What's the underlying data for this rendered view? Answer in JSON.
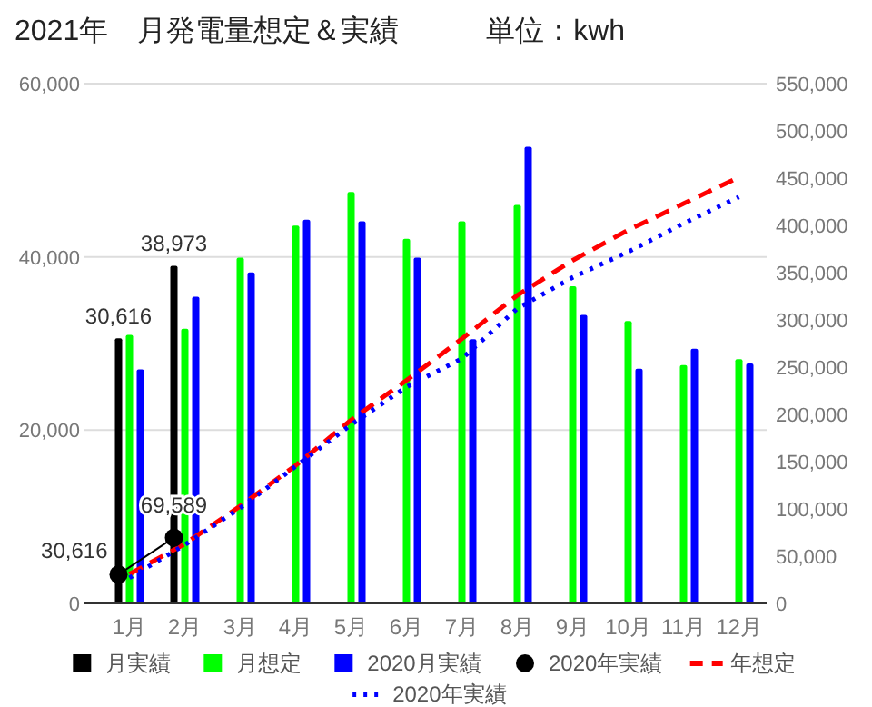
{
  "chart_data": {
    "type": "bar",
    "title": "2021年　月発電量想定＆実績　　　単位：kwh",
    "categories": [
      "1月",
      "2月",
      "3月",
      "4月",
      "5月",
      "6月",
      "7月",
      "8月",
      "9月",
      "10月",
      "11月",
      "12月"
    ],
    "ylim": [
      0,
      60000
    ],
    "yticks": [
      {
        "value": 0,
        "label": "0"
      },
      {
        "value": 20000,
        "label": "20,000"
      },
      {
        "value": 40000,
        "label": "40,000"
      },
      {
        "value": 60000,
        "label": "60,000"
      }
    ],
    "y2lim": [
      0,
      550000
    ],
    "y2ticks": [
      {
        "value": 0,
        "label": "0"
      },
      {
        "value": 50000,
        "label": "50,000"
      },
      {
        "value": 100000,
        "label": "100,000"
      },
      {
        "value": 150000,
        "label": "150,000"
      },
      {
        "value": 200000,
        "label": "200,000"
      },
      {
        "value": 250000,
        "label": "250,000"
      },
      {
        "value": 300000,
        "label": "300,000"
      },
      {
        "value": 350000,
        "label": "350,000"
      },
      {
        "value": 400000,
        "label": "400,000"
      },
      {
        "value": 450000,
        "label": "450,000"
      },
      {
        "value": 500000,
        "label": "500,000"
      },
      {
        "value": 550000,
        "label": "550,000"
      }
    ],
    "grid": "y",
    "legend": "bottom",
    "series": [
      {
        "name": "月実績",
        "color": "#000000",
        "values": [
          30616,
          38973,
          null,
          null,
          null,
          null,
          null,
          null,
          null,
          null,
          null,
          null
        ],
        "value_labels": [
          "30,616",
          "38,973",
          null,
          null,
          null,
          null,
          null,
          null,
          null,
          null,
          null,
          null
        ]
      },
      {
        "name": "月想定",
        "color": "#00ff00",
        "values": [
          31000,
          31700,
          39900,
          43600,
          47500,
          42100,
          44100,
          46000,
          36600,
          32600,
          27500,
          28200
        ]
      },
      {
        "name": "2020月実績",
        "color": "#0000ff",
        "values": [
          27000,
          35400,
          38200,
          44300,
          44100,
          39900,
          30500,
          52700,
          33300,
          27100,
          29400,
          27700
        ]
      },
      {
        "name": "2020年実績",
        "type": "line",
        "axis": "y2",
        "marker": "circle",
        "line_style": "solid",
        "color": "#000000",
        "values": [
          30616,
          69589,
          null,
          null,
          null,
          null,
          null,
          null,
          null,
          null,
          null,
          null
        ],
        "value_labels": [
          "30,616",
          "69,589",
          null,
          null,
          null,
          null,
          null,
          null,
          null,
          null,
          null,
          null
        ]
      },
      {
        "name": "年想定",
        "type": "line",
        "axis": "y2",
        "marker": "none",
        "line_style": "dashed",
        "color": "#ff0000",
        "values": [
          31000,
          63000,
          103000,
          146000,
          194000,
          236000,
          280000,
          326000,
          363000,
          395000,
          423000,
          451000
        ]
      },
      {
        "name": "2020年実績",
        "type": "line",
        "axis": "y2",
        "marker": "none",
        "line_style": "dotted",
        "color": "#0000ff",
        "values": [
          27000,
          62000,
          101000,
          145000,
          189000,
          229000,
          259000,
          312000,
          345000,
          372000,
          402000,
          430000
        ]
      }
    ]
  }
}
